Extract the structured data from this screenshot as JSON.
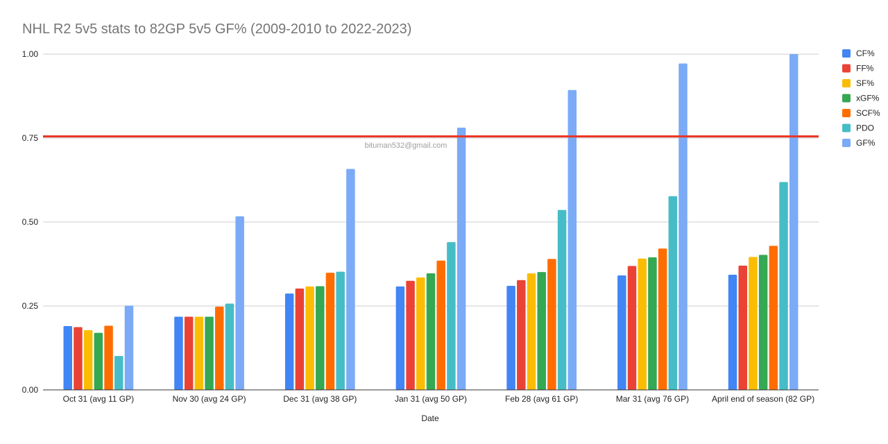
{
  "chart_data": {
    "type": "bar",
    "title": "NHL R2 5v5 stats to 82GP 5v5 GF% (2009-2010 to 2022-2023)",
    "xlabel": "Date",
    "ylabel": "",
    "ylim": [
      0,
      1.0
    ],
    "yticks": [
      "0.00",
      "0.25",
      "0.50",
      "0.75",
      "1.00"
    ],
    "grid": true,
    "legend_position": "right",
    "watermark": "bituman532@gmail.com",
    "reference_line": {
      "y": 0.755,
      "color": "#ea3323"
    },
    "categories": [
      "Oct 31 (avg 11 GP)",
      "Nov 30 (avg 24 GP)",
      "Dec 31 (avg 38 GP)",
      "Jan 31 (avg 50 GP)",
      "Feb 28 (avg 61 GP)",
      "Mar 31 (avg 76 GP)",
      "April end of season (82 GP)"
    ],
    "series": [
      {
        "name": "CF%",
        "color": "#4285f4",
        "values": [
          0.19,
          0.218,
          0.287,
          0.308,
          0.31,
          0.341,
          0.343
        ]
      },
      {
        "name": "FF%",
        "color": "#ea4335",
        "values": [
          0.187,
          0.218,
          0.302,
          0.325,
          0.327,
          0.369,
          0.37
        ]
      },
      {
        "name": "SF%",
        "color": "#fbbc04",
        "values": [
          0.178,
          0.218,
          0.308,
          0.335,
          0.347,
          0.391,
          0.396
        ]
      },
      {
        "name": "xGF%",
        "color": "#34a853",
        "values": [
          0.17,
          0.218,
          0.309,
          0.347,
          0.351,
          0.395,
          0.402
        ]
      },
      {
        "name": "SCF%",
        "color": "#ff6d01",
        "values": [
          0.191,
          0.248,
          0.349,
          0.385,
          0.39,
          0.421,
          0.429
        ]
      },
      {
        "name": "PDO",
        "color": "#46bdc6",
        "values": [
          0.101,
          0.257,
          0.352,
          0.44,
          0.536,
          0.577,
          0.619
        ]
      },
      {
        "name": "GF%",
        "color": "#7baaf7",
        "values": [
          0.251,
          0.517,
          0.658,
          0.781,
          0.893,
          0.972,
          1.0
        ]
      }
    ]
  }
}
